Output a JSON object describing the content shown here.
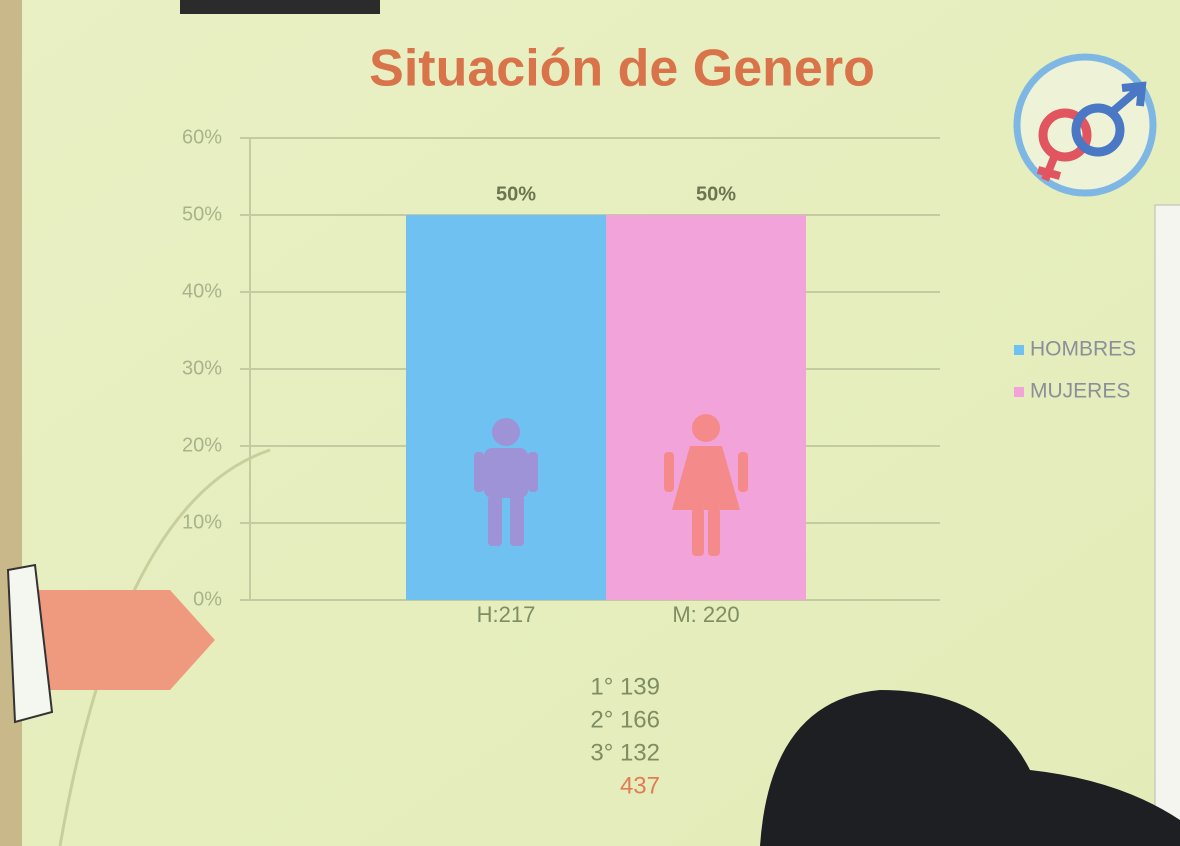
{
  "chart_data": {
    "type": "bar",
    "title": "Situación de Genero",
    "categories": [
      "H:217",
      "M: 220"
    ],
    "series": [
      {
        "name": "HOMBRES",
        "color": "#6fc1f2",
        "values": [
          50,
          null
        ],
        "value_labels": [
          "50%",
          null
        ]
      },
      {
        "name": "MUJERES",
        "color": "#f2a3d9",
        "values": [
          null,
          50
        ],
        "value_labels": [
          null,
          "50%"
        ]
      }
    ],
    "ylim": [
      0,
      60
    ],
    "yticks": [
      {
        "value": 0,
        "label": "0%"
      },
      {
        "value": 10,
        "label": "10%"
      },
      {
        "value": 20,
        "label": "20%"
      },
      {
        "value": 30,
        "label": "30%"
      },
      {
        "value": 40,
        "label": "40%"
      },
      {
        "value": 50,
        "label": "50%"
      },
      {
        "value": 60,
        "label": "60%"
      }
    ],
    "grid": true,
    "legend": "right",
    "notes": [
      "1° 139",
      "2° 166",
      "3° 132",
      "437"
    ]
  }
}
